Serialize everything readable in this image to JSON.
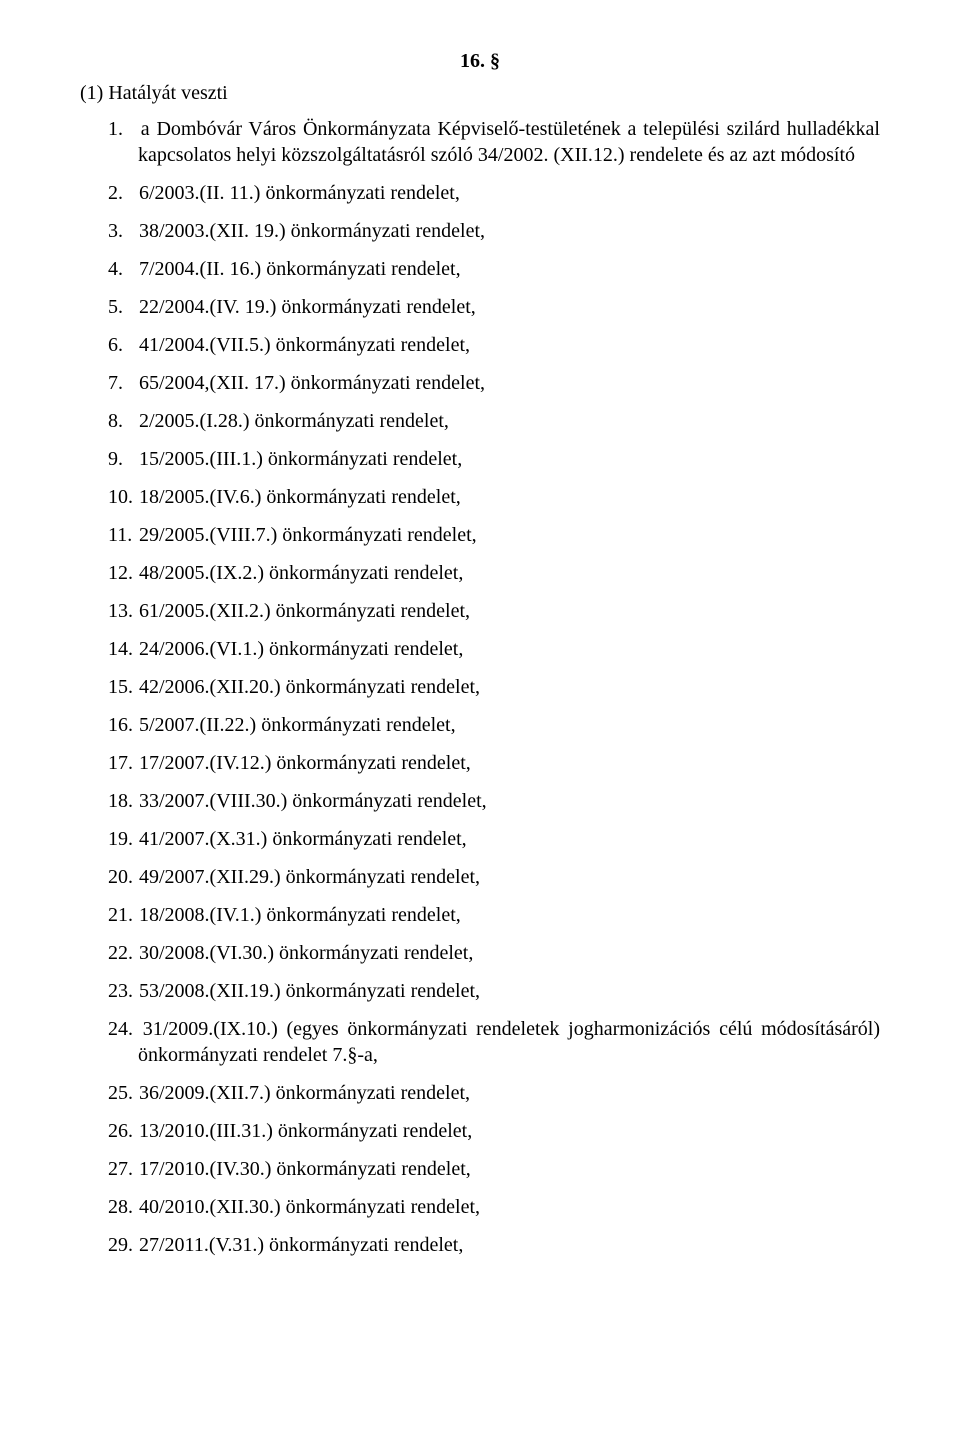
{
  "section_number": "16. §",
  "intro": "(1) Hatályát veszti",
  "items": [
    {
      "n": "1.",
      "text": "a Dombóvár Város Önkormányzata Képviselő-testületének a települési szilárd hulladékkal kapcsolatos helyi közszolgáltatásról szóló 34/2002. (XII.12.) rendelete és az azt módosító"
    },
    {
      "n": "2.",
      "text": "6/2003.(II. 11.) önkormányzati rendelet,"
    },
    {
      "n": "3.",
      "text": "38/2003.(XII. 19.) önkormányzati rendelet,"
    },
    {
      "n": "4.",
      "text": "7/2004.(II. 16.) önkormányzati rendelet,"
    },
    {
      "n": "5.",
      "text": "22/2004.(IV. 19.) önkormányzati rendelet,"
    },
    {
      "n": "6.",
      "text": "41/2004.(VII.5.) önkormányzati rendelet,"
    },
    {
      "n": "7.",
      "text": "65/2004,(XII. 17.) önkormányzati rendelet,"
    },
    {
      "n": "8.",
      "text": "2/2005.(I.28.) önkormányzati rendelet,"
    },
    {
      "n": "9.",
      "text": "15/2005.(III.1.) önkormányzati rendelet,"
    },
    {
      "n": "10.",
      "text": "18/2005.(IV.6.) önkormányzati rendelet,"
    },
    {
      "n": "11.",
      "text": "29/2005.(VIII.7.) önkormányzati rendelet,"
    },
    {
      "n": "12.",
      "text": "48/2005.(IX.2.) önkormányzati rendelet,"
    },
    {
      "n": "13.",
      "text": "61/2005.(XII.2.) önkormányzati rendelet,"
    },
    {
      "n": "14.",
      "text": "24/2006.(VI.1.) önkormányzati rendelet,"
    },
    {
      "n": "15.",
      "text": "42/2006.(XII.20.) önkormányzati rendelet,"
    },
    {
      "n": "16.",
      "text": "5/2007.(II.22.) önkormányzati rendelet,"
    },
    {
      "n": "17.",
      "text": "17/2007.(IV.12.) önkormányzati rendelet,"
    },
    {
      "n": "18.",
      "text": "33/2007.(VIII.30.) önkormányzati rendelet,"
    },
    {
      "n": "19.",
      "text": "41/2007.(X.31.) önkormányzati rendelet,"
    },
    {
      "n": "20.",
      "text": "49/2007.(XII.29.) önkormányzati rendelet,"
    },
    {
      "n": "21.",
      "text": "18/2008.(IV.1.) önkormányzati rendelet,"
    },
    {
      "n": "22.",
      "text": "30/2008.(VI.30.) önkormányzati rendelet,"
    },
    {
      "n": "23.",
      "text": "53/2008.(XII.19.) önkormányzati rendelet,"
    },
    {
      "n": "24.",
      "text": "31/2009.(IX.10.) (egyes önkormányzati rendeletek jogharmonizációs célú módosításáról) önkormányzati rendelet 7.§-a,"
    },
    {
      "n": "25.",
      "text": "36/2009.(XII.7.) önkormányzati rendelet,"
    },
    {
      "n": "26.",
      "text": "13/2010.(III.31.) önkormányzati rendelet,"
    },
    {
      "n": "27.",
      "text": "17/2010.(IV.30.) önkormányzati rendelet,"
    },
    {
      "n": "28.",
      "text": "40/2010.(XII.30.) önkormányzati rendelet,"
    },
    {
      "n": "29.",
      "text": "27/2011.(V.31.) önkormányzati rendelet,"
    }
  ]
}
